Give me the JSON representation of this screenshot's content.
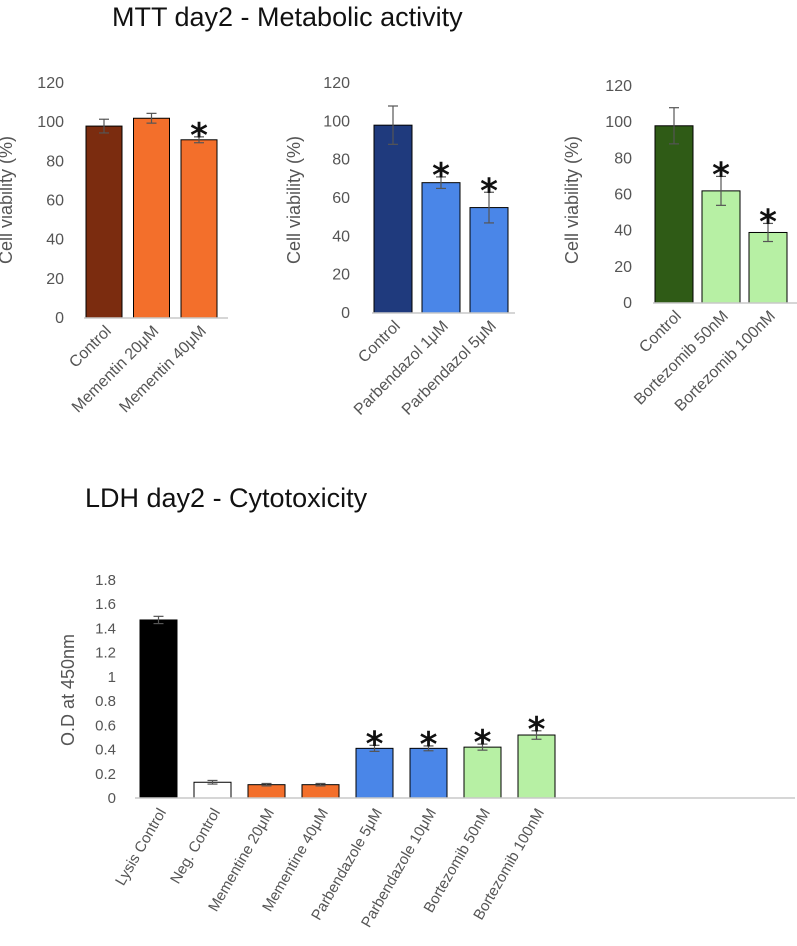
{
  "titles": {
    "mtt": "MTT day2 - Metabolic activity",
    "ldh": "LDH day2 - Cytotoxicity"
  },
  "colors": {
    "brown": "#7B2C0F",
    "orange": "#F36F2B",
    "navy": "#1F3A7D",
    "blue": "#4A86E8",
    "darkgreen": "#2F5B16",
    "lightgreen": "#B7F0A4",
    "black": "#000000",
    "white": "#FFFFFF",
    "error": "#555555",
    "axis": "#C8C8C8"
  },
  "chart_data": [
    {
      "type": "bar",
      "title": "",
      "xlabel": "",
      "ylabel": "Cell viability (%)",
      "ylim": [
        0,
        120
      ],
      "yticks": [
        "0",
        "20",
        "40",
        "60",
        "80",
        "100",
        "120"
      ],
      "categories": [
        "Control",
        "Mementin 20μM",
        "Mementin 40μM"
      ],
      "values": [
        98,
        102,
        91
      ],
      "errors": [
        3.5,
        2.5,
        1.5
      ],
      "significant": [
        false,
        false,
        true
      ],
      "colors": [
        "brown",
        "orange",
        "orange"
      ],
      "marker": "*"
    },
    {
      "type": "bar",
      "title": "",
      "xlabel": "",
      "ylabel": "Cell viability (%)",
      "ylim": [
        0,
        120
      ],
      "yticks": [
        "0",
        "20",
        "40",
        "60",
        "80",
        "100",
        "120"
      ],
      "categories": [
        "Control",
        "Parbendazol 1μM",
        "Parbendazol 5μM"
      ],
      "values": [
        98,
        68,
        55
      ],
      "errors": [
        10,
        3,
        8
      ],
      "significant": [
        false,
        true,
        true
      ],
      "colors": [
        "navy",
        "blue",
        "blue"
      ],
      "marker": "*"
    },
    {
      "type": "bar",
      "title": "",
      "xlabel": "",
      "ylabel": "Cell viability (%)",
      "ylim": [
        0,
        120
      ],
      "yticks": [
        "0",
        "20",
        "40",
        "60",
        "80",
        "100",
        "120"
      ],
      "categories": [
        "Control",
        "Bortezomib 50nM",
        "Bortezomib 100nM"
      ],
      "values": [
        98,
        62,
        39
      ],
      "errors": [
        10,
        8,
        5
      ],
      "significant": [
        false,
        true,
        true
      ],
      "colors": [
        "darkgreen",
        "lightgreen",
        "lightgreen"
      ],
      "marker": "*"
    },
    {
      "type": "bar",
      "title": "",
      "xlabel": "",
      "ylabel": "O.D at 450nm",
      "ylim": [
        0,
        1.8
      ],
      "yticks": [
        "0",
        "0.2",
        "0.4",
        "0.6",
        "0.8",
        "1",
        "1.2",
        "1.4",
        "1.6",
        "1.8"
      ],
      "categories": [
        "Lysis Control",
        "Neg. Control",
        "Mementine 20μM",
        "Mementine 40μM",
        "Parbendazole 5μM",
        "Parbendazole 10μM",
        "Bortezomib 50nM",
        "Bortezomib 100nM"
      ],
      "values": [
        1.47,
        0.13,
        0.11,
        0.11,
        0.41,
        0.41,
        0.42,
        0.52
      ],
      "errors": [
        0.03,
        0.015,
        0.01,
        0.01,
        0.025,
        0.02,
        0.025,
        0.035
      ],
      "significant": [
        false,
        false,
        false,
        false,
        true,
        true,
        true,
        true
      ],
      "colors": [
        "black",
        "white",
        "orange",
        "orange",
        "blue",
        "blue",
        "lightgreen",
        "lightgreen"
      ],
      "marker": "*"
    }
  ]
}
